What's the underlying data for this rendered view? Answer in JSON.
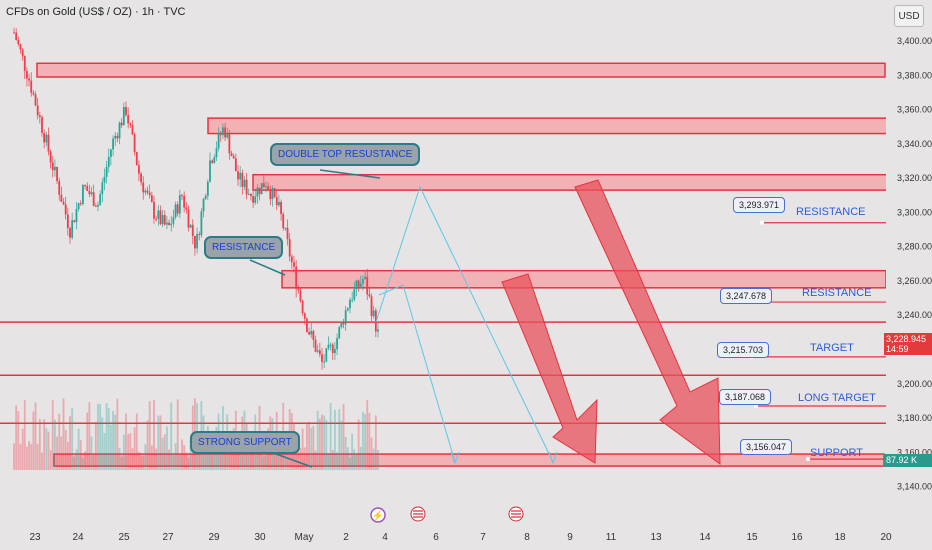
{
  "header": {
    "title": "CFDs on Gold (US$ / OZ) · 1h · TVC",
    "currency_button": "USD"
  },
  "price_tags": {
    "last_price": "3,228.945",
    "countdown": "14:59",
    "volume": "87.92 K"
  },
  "callouts": {
    "double_top": "DOUBLE TOP RESUSTANCE",
    "resistance": "RESISTANCE",
    "strong_support": "STRONG SUPPORT"
  },
  "levels": [
    {
      "value": "3,293.971",
      "label": "RESISTANCE"
    },
    {
      "value": "3,247.678",
      "label": "RESISTANCE"
    },
    {
      "value": "3,215.703",
      "label": "TARGET"
    },
    {
      "value": "3,187.068",
      "label": "LONG TARGET"
    },
    {
      "value": "3,156.047",
      "label": "SUPPORT"
    }
  ],
  "colors": {
    "background": "#e6e4e4",
    "zone_fill": "#f3a9ad",
    "zone_border": "#e53340",
    "up_candle": "#26a69a",
    "down_candle": "#ef3d4b",
    "projection": "#5bc8e6",
    "arrow_fill": "#e8525c",
    "callout_border": "#2a7c86",
    "level_text": "#2e5bdd"
  },
  "chart_data": {
    "type": "candlestick",
    "title": "CFDs on Gold (US$ / OZ) · 1h · TVC",
    "x_ticks": [
      "23",
      "24",
      "25",
      "27",
      "29",
      "30",
      "May",
      "2",
      "4",
      "6",
      "7",
      "8",
      "9",
      "11",
      "13",
      "14",
      "15",
      "16",
      "18",
      "20"
    ],
    "y_ticks": [
      "3,400.000",
      "3,380.000",
      "3,360.000",
      "3,340.000",
      "3,320.000",
      "3,300.000",
      "3,280.000",
      "3,260.000",
      "3,240.000",
      "3,220.000",
      "3,200.000",
      "3,180.000",
      "3,160.000",
      "3,140.000"
    ],
    "ylim": [
      3132,
      3412
    ],
    "price_path_sampled": [
      {
        "x": "23",
        "y": 3405
      },
      {
        "x": "23",
        "y": 3380
      },
      {
        "x": "23",
        "y": 3350
      },
      {
        "x": "23",
        "y": 3320
      },
      {
        "x": "24",
        "y": 3290
      },
      {
        "x": "24",
        "y": 3315
      },
      {
        "x": "24",
        "y": 3305
      },
      {
        "x": "24",
        "y": 3340
      },
      {
        "x": "25",
        "y": 3360
      },
      {
        "x": "25",
        "y": 3320
      },
      {
        "x": "25",
        "y": 3300
      },
      {
        "x": "27",
        "y": 3290
      },
      {
        "x": "27",
        "y": 3310
      },
      {
        "x": "27",
        "y": 3280
      },
      {
        "x": "29",
        "y": 3330
      },
      {
        "x": "29",
        "y": 3350
      },
      {
        "x": "29",
        "y": 3320
      },
      {
        "x": "30",
        "y": 3310
      },
      {
        "x": "30",
        "y": 3318
      },
      {
        "x": "30",
        "y": 3300
      },
      {
        "x": "30",
        "y": 3265
      },
      {
        "x": "May",
        "y": 3232
      },
      {
        "x": "May",
        "y": 3212
      },
      {
        "x": "2",
        "y": 3225
      },
      {
        "x": "2",
        "y": 3250
      },
      {
        "x": "2",
        "y": 3262
      },
      {
        "x": "4",
        "y": 3229
      }
    ],
    "zones": [
      {
        "from": 3379,
        "to": 3387
      },
      {
        "from": 3346,
        "to": 3355
      },
      {
        "from": 3313,
        "to": 3322
      },
      {
        "from": 3256,
        "to": 3266
      },
      {
        "from": 3152,
        "to": 3159
      }
    ],
    "horizontal_lines": [
      3236,
      3205,
      3177
    ],
    "level_values": [
      3293.971,
      3247.678,
      3215.703,
      3187.068,
      3156.047
    ],
    "volume_label": "87.92 K",
    "grid": false
  }
}
